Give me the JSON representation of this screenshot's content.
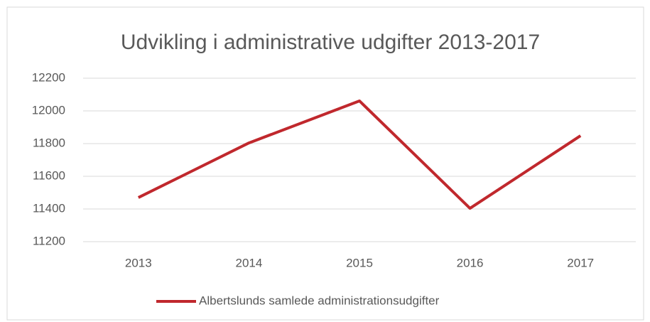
{
  "chart_data": {
    "type": "line",
    "title": "Udvikling i administrative udgifter 2013-2017",
    "categories": [
      "2013",
      "2014",
      "2015",
      "2016",
      "2017"
    ],
    "series": [
      {
        "name": "Albertslunds samlede administrationsudgifter",
        "color": "#c0282d",
        "values": [
          11470,
          11804,
          12061,
          11404,
          11848
        ]
      }
    ],
    "ylim": [
      11200,
      12200
    ],
    "yticks": [
      11200,
      11400,
      11600,
      11800,
      12000,
      12200
    ],
    "grid": true,
    "legend": "bottom"
  }
}
